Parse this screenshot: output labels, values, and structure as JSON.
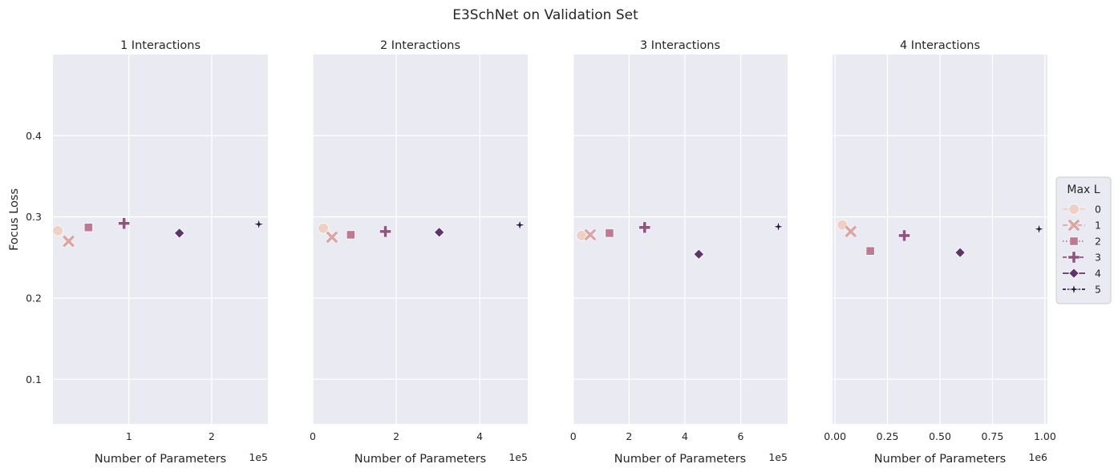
{
  "chart_data": {
    "type": "scatter",
    "title": "E3SchNet on Validation Set",
    "ylabel": "Focus Loss",
    "xlabel": "Number of Parameters",
    "ylim": [
      0.045,
      0.5
    ],
    "yticks": [
      0.1,
      0.2,
      0.3,
      0.4
    ],
    "ytick_labels": [
      "0.1",
      "0.2",
      "0.3",
      "0.4"
    ],
    "grid": true,
    "legend": {
      "title": "Max L",
      "placement": "center-right",
      "entries": [
        "0",
        "1",
        "2",
        "3",
        "4",
        "5"
      ]
    },
    "colors": {
      "0": "#efd0c4",
      "1": "#dba7a6",
      "2": "#bd7a92",
      "3": "#935382",
      "4": "#60346a",
      "5": "#2a1a3e",
      "panel_bg": "#eaeaf2",
      "grid": "#ffffff"
    },
    "markers": [
      "circle",
      "x",
      "square",
      "plus",
      "diamond",
      "star"
    ],
    "panels": [
      {
        "title": "1 Interactions",
        "xlim": [
          8000,
          268000
        ],
        "xticks": [
          100000,
          200000
        ],
        "xtick_labels": [
          "1",
          "2"
        ],
        "offset_text": "1e5",
        "points": [
          {
            "max_l": "0",
            "x": 14000,
            "y": 0.283
          },
          {
            "max_l": "1",
            "x": 27000,
            "y": 0.27
          },
          {
            "max_l": "2",
            "x": 51000,
            "y": 0.287
          },
          {
            "max_l": "3",
            "x": 94000,
            "y": 0.292
          },
          {
            "max_l": "4",
            "x": 161000,
            "y": 0.28
          },
          {
            "max_l": "5",
            "x": 257000,
            "y": 0.291
          }
        ]
      },
      {
        "title": "2 Interactions",
        "xlim": [
          0,
          515000
        ],
        "xticks": [
          0,
          200000,
          400000
        ],
        "xtick_labels": [
          "0",
          "2",
          "4"
        ],
        "offset_text": "1e5",
        "points": [
          {
            "max_l": "0",
            "x": 25000,
            "y": 0.286
          },
          {
            "max_l": "1",
            "x": 46000,
            "y": 0.275
          },
          {
            "max_l": "2",
            "x": 91000,
            "y": 0.278
          },
          {
            "max_l": "3",
            "x": 174000,
            "y": 0.282
          },
          {
            "max_l": "4",
            "x": 303000,
            "y": 0.281
          },
          {
            "max_l": "5",
            "x": 496000,
            "y": 0.29
          }
        ]
      },
      {
        "title": "3 Interactions",
        "xlim": [
          -2000,
          768000
        ],
        "xticks": [
          0,
          200000,
          400000,
          600000
        ],
        "xtick_labels": [
          "0",
          "2",
          "4",
          "6"
        ],
        "offset_text": "1e5",
        "points": [
          {
            "max_l": "0",
            "x": 30000,
            "y": 0.277
          },
          {
            "max_l": "1",
            "x": 61000,
            "y": 0.278
          },
          {
            "max_l": "2",
            "x": 130000,
            "y": 0.28
          },
          {
            "max_l": "3",
            "x": 256000,
            "y": 0.287
          },
          {
            "max_l": "4",
            "x": 450000,
            "y": 0.254
          },
          {
            "max_l": "5",
            "x": 735000,
            "y": 0.288
          }
        ]
      },
      {
        "title": "4 Interactions",
        "xlim": [
          -0.012,
          1.012
        ],
        "xticks": [
          0.0,
          0.25,
          0.5,
          0.75,
          1.0
        ],
        "xtick_labels": [
          "0.00",
          "0.25",
          "0.50",
          "0.75",
          "1.00"
        ],
        "offset_text": "1e6",
        "points": [
          {
            "max_l": "0",
            "x": 0.035,
            "y": 0.29
          },
          {
            "max_l": "1",
            "x": 0.075,
            "y": 0.282
          },
          {
            "max_l": "2",
            "x": 0.168,
            "y": 0.258
          },
          {
            "max_l": "3",
            "x": 0.33,
            "y": 0.277
          },
          {
            "max_l": "4",
            "x": 0.596,
            "y": 0.256
          },
          {
            "max_l": "5",
            "x": 0.972,
            "y": 0.285
          }
        ]
      }
    ]
  }
}
